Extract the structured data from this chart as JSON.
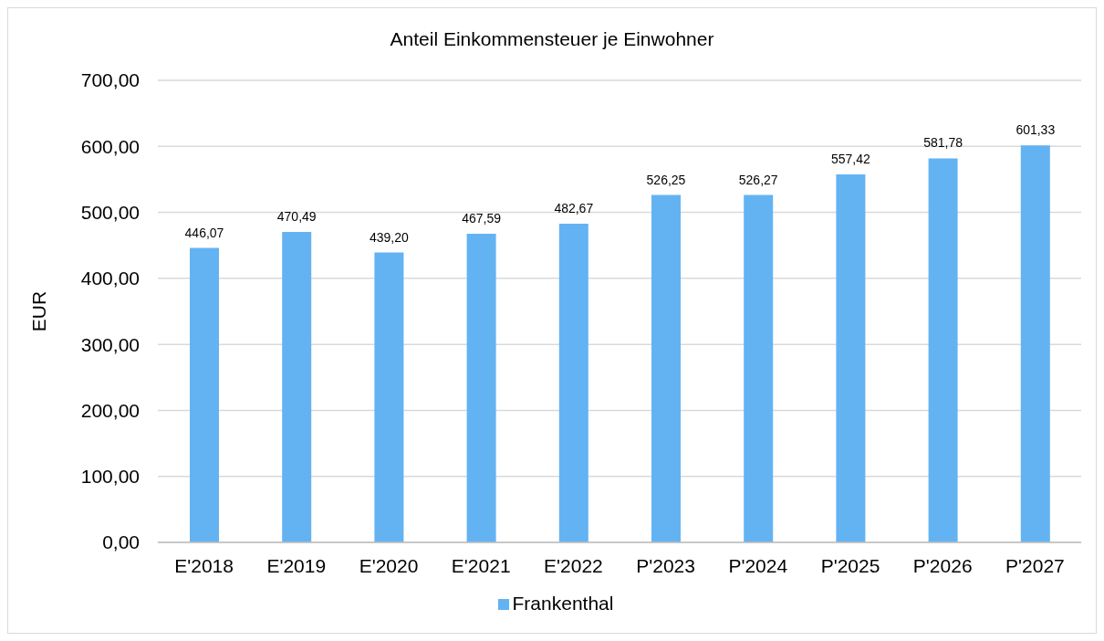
{
  "chart_data": {
    "type": "bar",
    "title": "Anteil Einkommensteuer je Einwohner",
    "ylabel": "EUR",
    "categories": [
      "E'2018",
      "E'2019",
      "E'2020",
      "E'2021",
      "E'2022",
      "P'2023",
      "P'2024",
      "P'2025",
      "P'2026",
      "P'2027"
    ],
    "series": [
      {
        "name": "Frankenthal",
        "color": "#63b3f3",
        "values": [
          446.07,
          470.49,
          439.2,
          467.59,
          482.67,
          526.25,
          526.27,
          557.42,
          581.78,
          601.33
        ],
        "value_labels": [
          "446,07",
          "470,49",
          "439,20",
          "467,59",
          "482,67",
          "526,25",
          "526,27",
          "557,42",
          "581,78",
          "601,33"
        ]
      }
    ],
    "ylim": [
      0,
      700
    ],
    "yticks": [
      {
        "value": 0,
        "label": "0,00"
      },
      {
        "value": 100,
        "label": "100,00"
      },
      {
        "value": 200,
        "label": "200,00"
      },
      {
        "value": 300,
        "label": "300,00"
      },
      {
        "value": 400,
        "label": "400,00"
      },
      {
        "value": 500,
        "label": "500,00"
      },
      {
        "value": 600,
        "label": "600,00"
      },
      {
        "value": 700,
        "label": "700,00"
      }
    ],
    "grid": "y",
    "legend": "bottom"
  }
}
